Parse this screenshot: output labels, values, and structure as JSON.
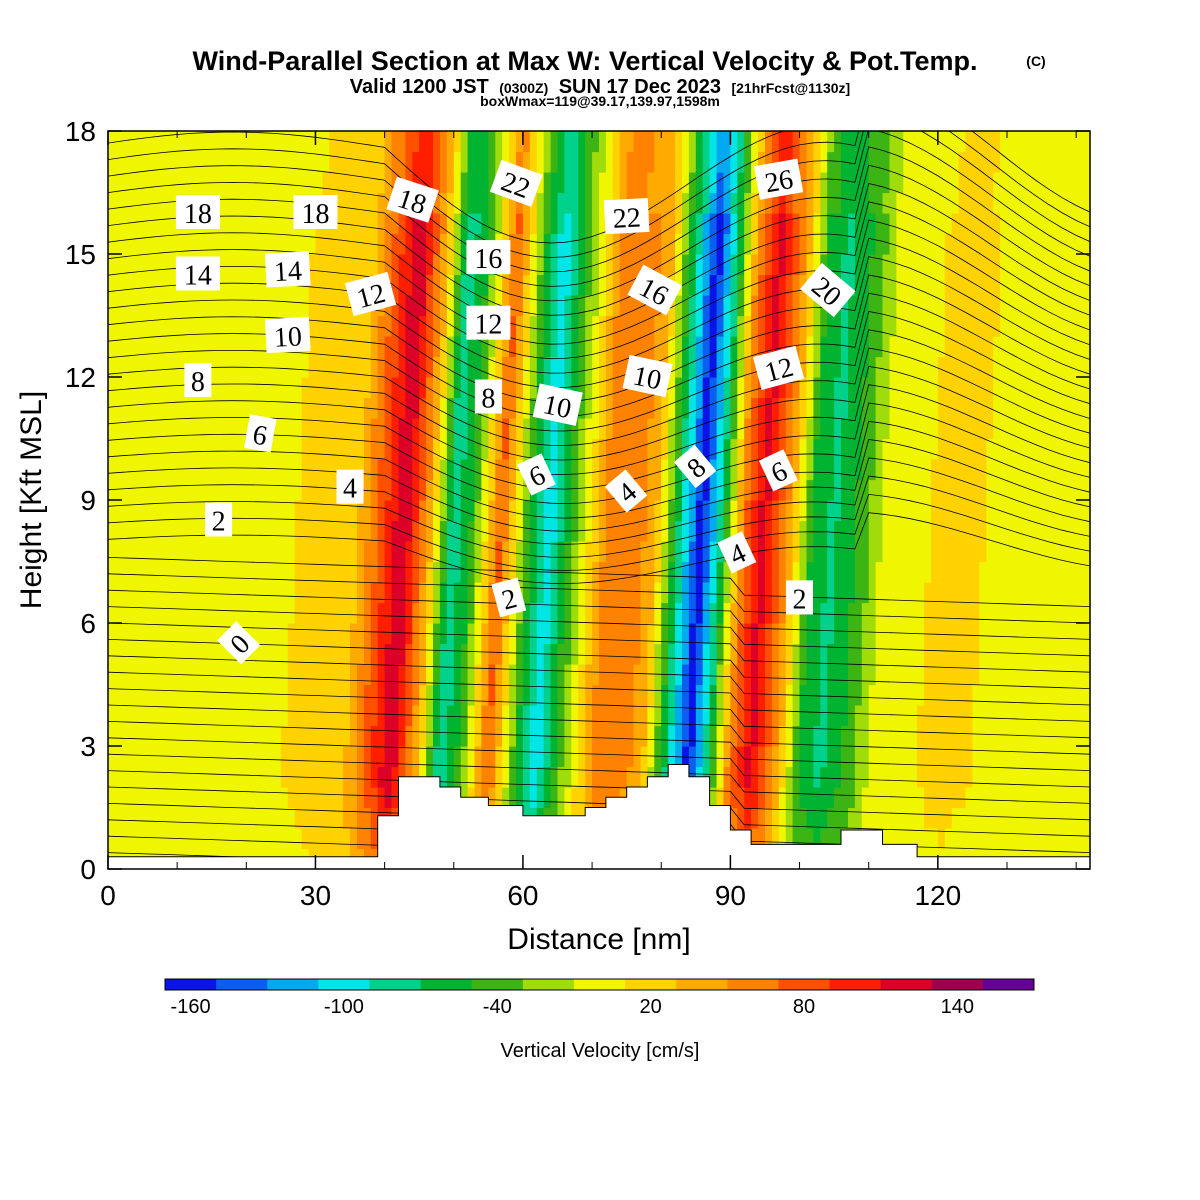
{
  "title": "Wind-Parallel Section at Max W: Vertical Velocity & Pot.Temp.",
  "title_mark": "(C)",
  "subtitle": {
    "prefix": "Valid 1200 JST",
    "utc": "(0300Z)",
    "date": "SUN 17 Dec 2023",
    "fcst": "[21hrFcst@1130z]"
  },
  "box_info": "boxWmax=119@39.17,139.97,1598m",
  "chart_data": {
    "type": "heatmap",
    "xlabel": "Distance [nm]",
    "ylabel": "Height [Kft MSL]",
    "xlim": [
      0,
      142
    ],
    "ylim": [
      0,
      18
    ],
    "x_ticks": [
      "0",
      "30",
      "60",
      "90",
      "120"
    ],
    "y_ticks": [
      "0",
      "3",
      "6",
      "9",
      "12",
      "15",
      "18"
    ],
    "grid": false,
    "colorbar": {
      "label": "Vertical Velocity [cm/s]",
      "min": -170,
      "max": 170,
      "step": 20,
      "tick_labels": [
        "-160",
        "-100",
        "-40",
        "20",
        "80",
        "140"
      ],
      "tick_values": [
        -160,
        -100,
        -40,
        20,
        80,
        140
      ],
      "colors": [
        "#0a14e6",
        "#0a5ff0",
        "#00aaf0",
        "#00e6e6",
        "#00d28c",
        "#00b432",
        "#3cb414",
        "#a0dc0a",
        "#f0f500",
        "#ffd200",
        "#ffaa00",
        "#ff8200",
        "#ff5000",
        "#ff1e00",
        "#dc0028",
        "#a00050",
        "#640096"
      ]
    },
    "vertical_velocity_bands": [
      {
        "x": 0,
        "w": -10
      },
      {
        "x": 10,
        "w": 2
      },
      {
        "x": 25,
        "w": 8
      },
      {
        "x": 35,
        "w": 22
      },
      {
        "x": 42,
        "w": 130
      },
      {
        "x": 46,
        "w": 30
      },
      {
        "x": 49,
        "w": -85
      },
      {
        "x": 52,
        "w": -45
      },
      {
        "x": 56,
        "w": 75
      },
      {
        "x": 60,
        "w": -45
      },
      {
        "x": 63,
        "w": -105
      },
      {
        "x": 66,
        "w": -45
      },
      {
        "x": 72,
        "w": 70
      },
      {
        "x": 78,
        "w": 45
      },
      {
        "x": 82,
        "w": -80
      },
      {
        "x": 85,
        "w": -165
      },
      {
        "x": 88,
        "w": -70
      },
      {
        "x": 91,
        "w": 60
      },
      {
        "x": 94,
        "w": 120
      },
      {
        "x": 98,
        "w": 40
      },
      {
        "x": 101,
        "w": -50
      },
      {
        "x": 104,
        "w": -75
      },
      {
        "x": 108,
        "w": -45
      },
      {
        "x": 112,
        "w": 2
      },
      {
        "x": 122,
        "w": 15
      },
      {
        "x": 130,
        "w": 5
      },
      {
        "x": 142,
        "w": -10
      }
    ],
    "pot_temp_contour_labels": [
      {
        "x": 13,
        "y": 16.0,
        "text": "18",
        "angle": 0
      },
      {
        "x": 30,
        "y": 16.0,
        "text": "18",
        "angle": 0
      },
      {
        "x": 44,
        "y": 16.3,
        "text": "18",
        "angle": 18
      },
      {
        "x": 59,
        "y": 16.7,
        "text": "22",
        "angle": 20
      },
      {
        "x": 75,
        "y": 15.9,
        "text": "22",
        "angle": -3
      },
      {
        "x": 97,
        "y": 16.8,
        "text": "26",
        "angle": -10
      },
      {
        "x": 13,
        "y": 14.5,
        "text": "14",
        "angle": 0
      },
      {
        "x": 26,
        "y": 14.6,
        "text": "14",
        "angle": -3
      },
      {
        "x": 38,
        "y": 14.0,
        "text": "12",
        "angle": -15
      },
      {
        "x": 55,
        "y": 14.9,
        "text": "16",
        "angle": 0
      },
      {
        "x": 79,
        "y": 14.1,
        "text": "16",
        "angle": 28
      },
      {
        "x": 104,
        "y": 14.1,
        "text": "20",
        "angle": 40
      },
      {
        "x": 26,
        "y": 13.0,
        "text": "10",
        "angle": -3
      },
      {
        "x": 55,
        "y": 13.3,
        "text": "12",
        "angle": 0
      },
      {
        "x": 13,
        "y": 11.9,
        "text": "8",
        "angle": 0
      },
      {
        "x": 55,
        "y": 11.5,
        "text": "8",
        "angle": 0
      },
      {
        "x": 65,
        "y": 11.3,
        "text": "10",
        "angle": 12
      },
      {
        "x": 78,
        "y": 12.0,
        "text": "10",
        "angle": 12
      },
      {
        "x": 97,
        "y": 12.2,
        "text": "12",
        "angle": -15
      },
      {
        "x": 22,
        "y": 10.6,
        "text": "6",
        "angle": 10
      },
      {
        "x": 35,
        "y": 9.3,
        "text": "4",
        "angle": 0
      },
      {
        "x": 62,
        "y": 9.6,
        "text": "6",
        "angle": -25
      },
      {
        "x": 75,
        "y": 9.2,
        "text": "4",
        "angle": -40
      },
      {
        "x": 85,
        "y": 9.8,
        "text": "8",
        "angle": -40
      },
      {
        "x": 97,
        "y": 9.7,
        "text": "6",
        "angle": -25
      },
      {
        "x": 16,
        "y": 8.5,
        "text": "2",
        "angle": 0
      },
      {
        "x": 91,
        "y": 7.7,
        "text": "4",
        "angle": -25
      },
      {
        "x": 58,
        "y": 6.6,
        "text": "2",
        "angle": -15
      },
      {
        "x": 100,
        "y": 6.6,
        "text": "2",
        "angle": 0
      },
      {
        "x": 19,
        "y": 5.5,
        "text": "0",
        "angle": -45
      }
    ],
    "terrain": [
      [
        0,
        0.3
      ],
      [
        39,
        0.3
      ],
      [
        39,
        1.3
      ],
      [
        42,
        1.3
      ],
      [
        42,
        2.25
      ],
      [
        48,
        2.25
      ],
      [
        48,
        2.0
      ],
      [
        51,
        2.0
      ],
      [
        51,
        1.75
      ],
      [
        55,
        1.75
      ],
      [
        55,
        1.55
      ],
      [
        58,
        1.55
      ],
      [
        58,
        1.55
      ],
      [
        60,
        1.55
      ],
      [
        60,
        1.3
      ],
      [
        66,
        1.3
      ],
      [
        66,
        1.3
      ],
      [
        69,
        1.3
      ],
      [
        69,
        1.5
      ],
      [
        72,
        1.5
      ],
      [
        72,
        1.75
      ],
      [
        75,
        1.75
      ],
      [
        75,
        2.0
      ],
      [
        78,
        2.0
      ],
      [
        78,
        2.25
      ],
      [
        81,
        2.25
      ],
      [
        81,
        2.55
      ],
      [
        84,
        2.55
      ],
      [
        84,
        2.25
      ],
      [
        87,
        2.25
      ],
      [
        87,
        1.55
      ],
      [
        90,
        1.55
      ],
      [
        90,
        0.95
      ],
      [
        93,
        0.95
      ],
      [
        93,
        0.6
      ],
      [
        106,
        0.6
      ],
      [
        106,
        0.95
      ],
      [
        112,
        0.95
      ],
      [
        112,
        0.6
      ],
      [
        117,
        0.6
      ],
      [
        117,
        0.3
      ],
      [
        142,
        0.3
      ]
    ]
  }
}
